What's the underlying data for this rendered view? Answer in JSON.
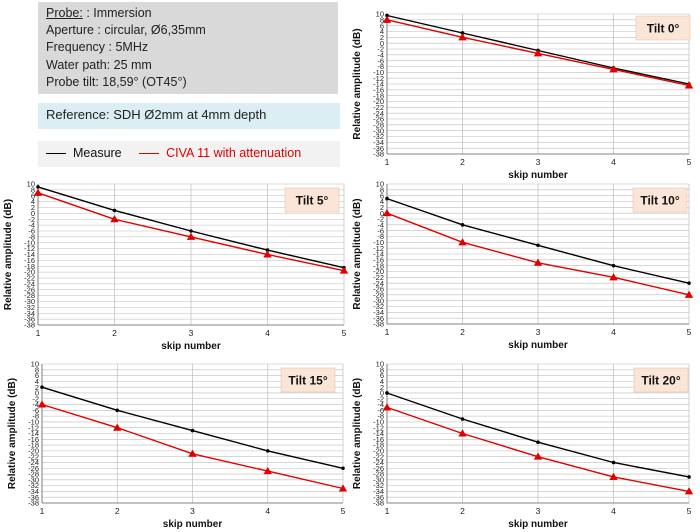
{
  "info": {
    "probe_label": "Probe:",
    "probe_value": " : Immersion",
    "aperture": "Aperture : circular, Ø6,35mm",
    "frequency": "Frequency : 5MHz",
    "water_path": "Water path: 25 mm",
    "probe_tilt": "Probe tilt: 18,59° (OT45°)"
  },
  "reference": "Reference: SDH Ø2mm at 4mm depth",
  "legend": {
    "measure": "Measure",
    "civa": "CIVA 11 with attenuation"
  },
  "colors": {
    "measure": "#000000",
    "civa": "#e00000",
    "tilt_label_bg": "#fbe5d6",
    "grid": "#bdbdbd"
  },
  "chart_data": [
    {
      "type": "line",
      "title": "Tilt 0°",
      "xlabel": "skip number",
      "ylabel": "Relative amplitude (dB)",
      "x": [
        1,
        2,
        3,
        4,
        5
      ],
      "xlim": [
        1,
        5
      ],
      "ylim": [
        -38,
        10
      ],
      "ytick_step": 2,
      "y_tick_labels": [
        "10",
        "8",
        "6",
        "4",
        "2",
        "0",
        "-2",
        "-4",
        "-6",
        "-8",
        "-10",
        "-12",
        "-14",
        "-16",
        "-18",
        "-20",
        "-22",
        "-24",
        "-26",
        "-28",
        "-30",
        "-32",
        "-34",
        "-36",
        "-38"
      ],
      "x_tick_labels": [
        "1",
        "2",
        "3",
        "4",
        "5"
      ],
      "series": [
        {
          "name": "Measure",
          "values": [
            9.5,
            3.5,
            -2.5,
            -8.5,
            -14
          ]
        },
        {
          "name": "CIVA 11 with attenuation",
          "values": [
            8,
            2,
            -3.5,
            -9,
            -14.5
          ]
        }
      ]
    },
    {
      "type": "line",
      "title": "Tilt 5°",
      "xlabel": "skip number",
      "ylabel": "Relative amplitude (dB)",
      "x": [
        1,
        2,
        3,
        4,
        5
      ],
      "xlim": [
        1,
        5
      ],
      "ylim": [
        -38,
        10
      ],
      "ytick_step": 2,
      "y_tick_labels": [
        "10",
        "8",
        "6",
        "4",
        "2",
        "0",
        "-2",
        "-4",
        "-6",
        "-8",
        "-10",
        "-12",
        "-14",
        "-16",
        "-18",
        "-20",
        "-22",
        "-24",
        "-26",
        "-28",
        "-30",
        "-32",
        "-34",
        "-36",
        "-38"
      ],
      "x_tick_labels": [
        "1",
        "2",
        "3",
        "4",
        "5"
      ],
      "series": [
        {
          "name": "Measure",
          "values": [
            9,
            1,
            -6,
            -12.5,
            -18.5
          ]
        },
        {
          "name": "CIVA 11 with attenuation",
          "values": [
            7,
            -2,
            -8,
            -14,
            -19.5
          ]
        }
      ]
    },
    {
      "type": "line",
      "title": "Tilt 10°",
      "xlabel": "skip number",
      "ylabel": "Relative amplitude (dB)",
      "x": [
        1,
        2,
        3,
        4,
        5
      ],
      "xlim": [
        1,
        5
      ],
      "ylim": [
        -38,
        10
      ],
      "ytick_step": 2,
      "y_tick_labels": [
        "10",
        "8",
        "6",
        "4",
        "2",
        "0",
        "-2",
        "-4",
        "-6",
        "-8",
        "-10",
        "-12",
        "-14",
        "-16",
        "-18",
        "-20",
        "-22",
        "-24",
        "-26",
        "-28",
        "-30",
        "-32",
        "-34",
        "-36",
        "-38"
      ],
      "x_tick_labels": [
        "1",
        "2",
        "3",
        "4",
        "5"
      ],
      "series": [
        {
          "name": "Measure",
          "values": [
            5,
            -4,
            -11,
            -18,
            -24
          ]
        },
        {
          "name": "CIVA 11 with attenuation",
          "values": [
            0,
            -10,
            -17,
            -22,
            -28
          ]
        }
      ]
    },
    {
      "type": "line",
      "title": "Tilt 15°",
      "xlabel": "skip number",
      "ylabel": "Relative amplitude (dB)",
      "x": [
        1,
        2,
        3,
        4,
        5
      ],
      "xlim": [
        1,
        5
      ],
      "ylim": [
        -38,
        10
      ],
      "ytick_step": 2,
      "y_tick_labels": [
        "10",
        "8",
        "6",
        "4",
        "2",
        "0",
        "-2",
        "-4",
        "-6",
        "-8",
        "-10",
        "-12",
        "-14",
        "-16",
        "-18",
        "-20",
        "-22",
        "-24",
        "-26",
        "-28",
        "-30",
        "-32",
        "-34",
        "-36",
        "-38"
      ],
      "x_tick_labels": [
        "1",
        "2",
        "3",
        "4",
        "5"
      ],
      "series": [
        {
          "name": "Measure",
          "values": [
            2,
            -6,
            -13,
            -20,
            -26
          ]
        },
        {
          "name": "CIVA 11 with attenuation",
          "values": [
            -4,
            -12,
            -21,
            -27,
            -33
          ]
        }
      ]
    },
    {
      "type": "line",
      "title": "Tilt 20°",
      "xlabel": "skip number",
      "ylabel": "Relative amplitude (dB)",
      "x": [
        1,
        2,
        3,
        4,
        5
      ],
      "xlim": [
        1,
        5
      ],
      "ylim": [
        -38,
        10
      ],
      "ytick_step": 2,
      "y_tick_labels": [
        "10",
        "8",
        "6",
        "4",
        "2",
        "0",
        "-2",
        "-4",
        "-6",
        "-8",
        "-10",
        "-12",
        "-14",
        "-16",
        "-18",
        "-20",
        "-22",
        "-24",
        "-26",
        "-28",
        "-30",
        "-32",
        "-34",
        "-36",
        "-38"
      ],
      "x_tick_labels": [
        "1",
        "2",
        "3",
        "4",
        "5"
      ],
      "series": [
        {
          "name": "Measure",
          "values": [
            0,
            -9,
            -17,
            -24,
            -29
          ]
        },
        {
          "name": "CIVA 11 with attenuation",
          "values": [
            -5,
            -14,
            -22,
            -29,
            -34
          ]
        }
      ]
    }
  ]
}
